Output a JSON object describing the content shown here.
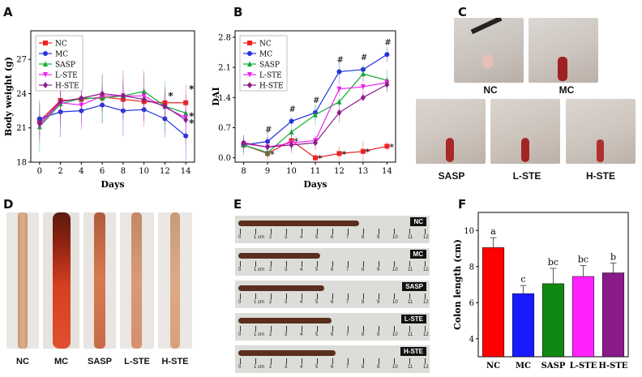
{
  "panels": {
    "A": "A",
    "B": "B",
    "C": "C",
    "D": "D",
    "E": "E",
    "F": "F"
  },
  "legend_entries": [
    "NC",
    "MC",
    "SASP",
    "L-STE",
    "H-STE"
  ],
  "series_colors": [
    "#ee2222",
    "#2233dd",
    "#11aa33",
    "#ee22ee",
    "#8a1a8a"
  ],
  "chart_data": [
    {
      "type": "line",
      "panel": "A",
      "xlabel": "Days",
      "ylabel": "Body weight (g)",
      "x": [
        0,
        2,
        4,
        6,
        8,
        10,
        12,
        14
      ],
      "xticks": [
        "0",
        "2",
        "4",
        "6",
        "8",
        "10",
        "12",
        "14"
      ],
      "yticks": [
        "18",
        "21",
        "24",
        "27"
      ],
      "ylim": [
        18,
        29.5
      ],
      "legend": "top-left",
      "series": [
        {
          "name": "NC",
          "values": [
            21.6,
            23.4,
            23.5,
            23.7,
            23.5,
            23.3,
            23.2,
            23.2
          ]
        },
        {
          "name": "MC",
          "values": [
            21.8,
            22.4,
            22.5,
            23.0,
            22.5,
            22.6,
            21.8,
            20.3
          ]
        },
        {
          "name": "SASP",
          "values": [
            21.1,
            23.1,
            23.6,
            23.6,
            23.8,
            24.2,
            22.9,
            22.3
          ]
        },
        {
          "name": "L-STE",
          "values": [
            21.2,
            23.2,
            23.0,
            23.8,
            23.8,
            23.8,
            22.8,
            21.9
          ]
        },
        {
          "name": "H-STE",
          "values": [
            21.4,
            23.3,
            23.6,
            24.0,
            23.8,
            23.5,
            22.9,
            21.7
          ]
        }
      ],
      "annotations": [
        "*",
        "*",
        "*",
        "*"
      ]
    },
    {
      "type": "line",
      "panel": "B",
      "xlabel": "Days",
      "ylabel": "DAI",
      "x": [
        8,
        9,
        10,
        11,
        12,
        13,
        14
      ],
      "xticks": [
        "8",
        "9",
        "10",
        "11",
        "12",
        "13",
        "14"
      ],
      "yticks": [
        "0.0",
        "0.7",
        "1.4",
        "2.1",
        "2.8"
      ],
      "ylim": [
        -0.1,
        2.95
      ],
      "legend": "top-left",
      "series": [
        {
          "name": "NC",
          "values": [
            0.3,
            0.1,
            0.4,
            0.0,
            0.1,
            0.15,
            0.27
          ]
        },
        {
          "name": "MC",
          "values": [
            0.3,
            0.38,
            0.85,
            1.05,
            2.0,
            2.05,
            2.4
          ]
        },
        {
          "name": "SASP",
          "values": [
            0.3,
            0.12,
            0.6,
            1.0,
            1.3,
            1.95,
            1.8
          ]
        },
        {
          "name": "L-STE",
          "values": [
            0.33,
            0.25,
            0.35,
            0.4,
            1.6,
            1.65,
            1.75
          ]
        },
        {
          "name": "H-STE",
          "values": [
            0.35,
            0.25,
            0.3,
            0.35,
            1.05,
            1.4,
            1.7
          ]
        }
      ],
      "annotations": [
        "#",
        "*"
      ]
    },
    {
      "type": "bar",
      "panel": "F",
      "xlabel": "",
      "ylabel": "Colon length (cm)",
      "categories": [
        "NC",
        "MC",
        "SASP",
        "L-STE",
        "H-STE"
      ],
      "values": [
        9.05,
        6.5,
        7.05,
        7.45,
        7.65
      ],
      "errors": [
        0.55,
        0.45,
        0.85,
        0.6,
        0.55
      ],
      "labels": [
        "a",
        "c",
        "bc",
        "bc",
        "b"
      ],
      "colors": [
        "#ff0000",
        "#1a1aff",
        "#118811",
        "#ff22ff",
        "#8a1a8a"
      ],
      "yticks": [
        "4",
        "6",
        "8",
        "10"
      ],
      "ylim": [
        3,
        11
      ]
    }
  ],
  "photos_c": [
    "NC",
    "MC",
    "SASP",
    "L-STE",
    "H-STE"
  ],
  "photos_d": [
    "NC",
    "MC",
    "SASP",
    "L-STE",
    "H-STE"
  ],
  "photos_e": [
    "NC",
    "MC",
    "SASP",
    "L-STE",
    "H-STE"
  ],
  "ruler_ticks": [
    "0",
    "1 cm",
    "2",
    "3",
    "4",
    "5",
    "6",
    "7",
    "8",
    "9",
    "10",
    "11",
    "12"
  ]
}
